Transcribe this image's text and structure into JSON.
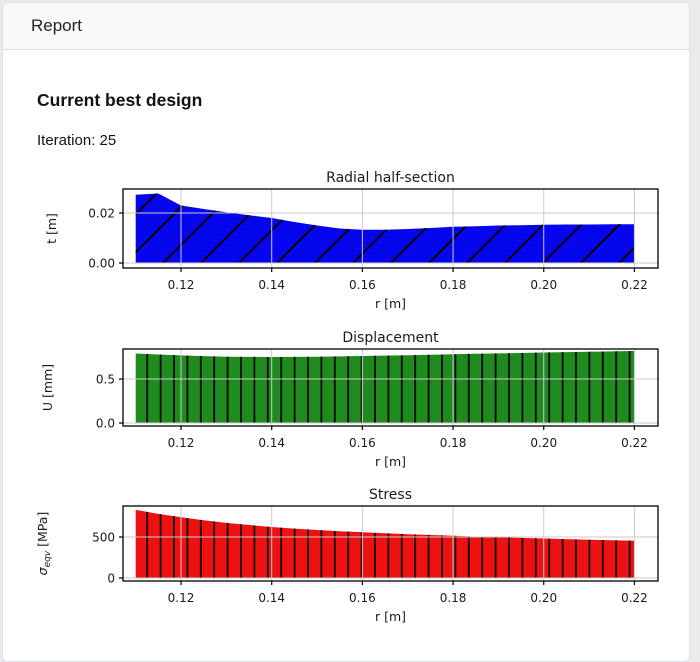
{
  "window": {
    "title": "Report"
  },
  "report": {
    "heading": "Current best design",
    "iteration_label": "Iteration: 25"
  },
  "colors": {
    "page_bg": "#e9eaec",
    "card_bg": "#ffffff",
    "card_header_bg": "#f8f9fa",
    "card_border": "#dee2e6",
    "text": "#212529",
    "grid": "#cbcbcb",
    "radial_fill": "#0505ee",
    "displacement_fill": "#1f8b1f",
    "stress_fill": "#ee1111"
  },
  "chart_data": [
    {
      "type": "area",
      "title": "Radial half-section",
      "xlabel": "r [m]",
      "ylabel": "t [m]",
      "ylabel_parts": [
        {
          "t": "t [m]"
        }
      ],
      "color": "#0505ee",
      "hatch": "/",
      "grid": true,
      "legend": "none",
      "xlim": [
        0.1072,
        0.2252
      ],
      "ylim": [
        -0.002,
        0.0296
      ],
      "xticks": {
        "values": [
          0.12,
          0.14,
          0.16,
          0.18,
          0.2,
          0.22
        ],
        "labels": [
          "0.12",
          "0.14",
          "0.16",
          "0.18",
          "0.20",
          "0.22"
        ]
      },
      "yticks": {
        "values": [
          0,
          0.02
        ],
        "labels": [
          "0.00",
          "0.02"
        ]
      },
      "x": [
        0.11,
        0.115,
        0.12,
        0.125,
        0.13,
        0.135,
        0.14,
        0.145,
        0.15,
        0.155,
        0.16,
        0.165,
        0.17,
        0.175,
        0.18,
        0.185,
        0.19,
        0.195,
        0.2,
        0.205,
        0.21,
        0.215,
        0.22
      ],
      "y": [
        0.0273,
        0.0278,
        0.023,
        0.0216,
        0.0203,
        0.0191,
        0.018,
        0.0164,
        0.015,
        0.0138,
        0.0133,
        0.0133,
        0.0136,
        0.014,
        0.0145,
        0.0147,
        0.015,
        0.0151,
        0.0153,
        0.0154,
        0.0154,
        0.0155,
        0.0155
      ]
    },
    {
      "type": "area",
      "title": "Displacement",
      "xlabel": "r [m]",
      "ylabel": "U [mm]",
      "ylabel_parts": [
        {
          "t": "U [mm]"
        }
      ],
      "color": "#1f8b1f",
      "hatch": "|",
      "grid": true,
      "legend": "none",
      "xlim": [
        0.1072,
        0.2252
      ],
      "ylim": [
        -0.034,
        0.841
      ],
      "xticks": {
        "values": [
          0.12,
          0.14,
          0.16,
          0.18,
          0.2,
          0.22
        ],
        "labels": [
          "0.12",
          "0.14",
          "0.16",
          "0.18",
          "0.20",
          "0.22"
        ]
      },
      "yticks": {
        "values": [
          0,
          0.5
        ],
        "labels": [
          "0.0",
          "0.5"
        ]
      },
      "x": [
        0.11,
        0.115,
        0.12,
        0.125,
        0.13,
        0.135,
        0.14,
        0.145,
        0.15,
        0.155,
        0.16,
        0.165,
        0.17,
        0.175,
        0.18,
        0.185,
        0.19,
        0.195,
        0.2,
        0.205,
        0.21,
        0.215,
        0.22
      ],
      "y": [
        0.79,
        0.778,
        0.768,
        0.76,
        0.754,
        0.751,
        0.75,
        0.751,
        0.753,
        0.757,
        0.761,
        0.766,
        0.771,
        0.776,
        0.781,
        0.786,
        0.791,
        0.796,
        0.801,
        0.806,
        0.81,
        0.814,
        0.818
      ]
    },
    {
      "type": "area",
      "title": "Stress",
      "xlabel": "r [m]",
      "ylabel": "σ_eqv [MPa]",
      "ylabel_parts": [
        {
          "t": "σ",
          "i": true
        },
        {
          "t": "eqv",
          "i": true,
          "s": true
        },
        {
          "t": " [MPa]"
        }
      ],
      "color": "#ee1111",
      "hatch": "|",
      "grid": true,
      "legend": "none",
      "xlim": [
        0.1072,
        0.2252
      ],
      "ylim": [
        -37,
        878
      ],
      "xticks": {
        "values": [
          0.12,
          0.14,
          0.16,
          0.18,
          0.2,
          0.22
        ],
        "labels": [
          "0.12",
          "0.14",
          "0.16",
          "0.18",
          "0.20",
          "0.22"
        ]
      },
      "yticks": {
        "values": [
          0,
          500
        ],
        "labels": [
          "0",
          "500"
        ]
      },
      "x": [
        0.11,
        0.115,
        0.12,
        0.125,
        0.13,
        0.135,
        0.14,
        0.145,
        0.15,
        0.155,
        0.16,
        0.165,
        0.17,
        0.175,
        0.18,
        0.185,
        0.19,
        0.195,
        0.2,
        0.205,
        0.21,
        0.215,
        0.22
      ],
      "y": [
        830,
        782,
        740,
        704,
        672,
        646,
        622,
        602,
        585,
        570,
        557,
        545,
        534,
        524,
        514,
        505,
        497,
        489,
        481,
        474,
        467,
        461,
        455
      ]
    }
  ]
}
